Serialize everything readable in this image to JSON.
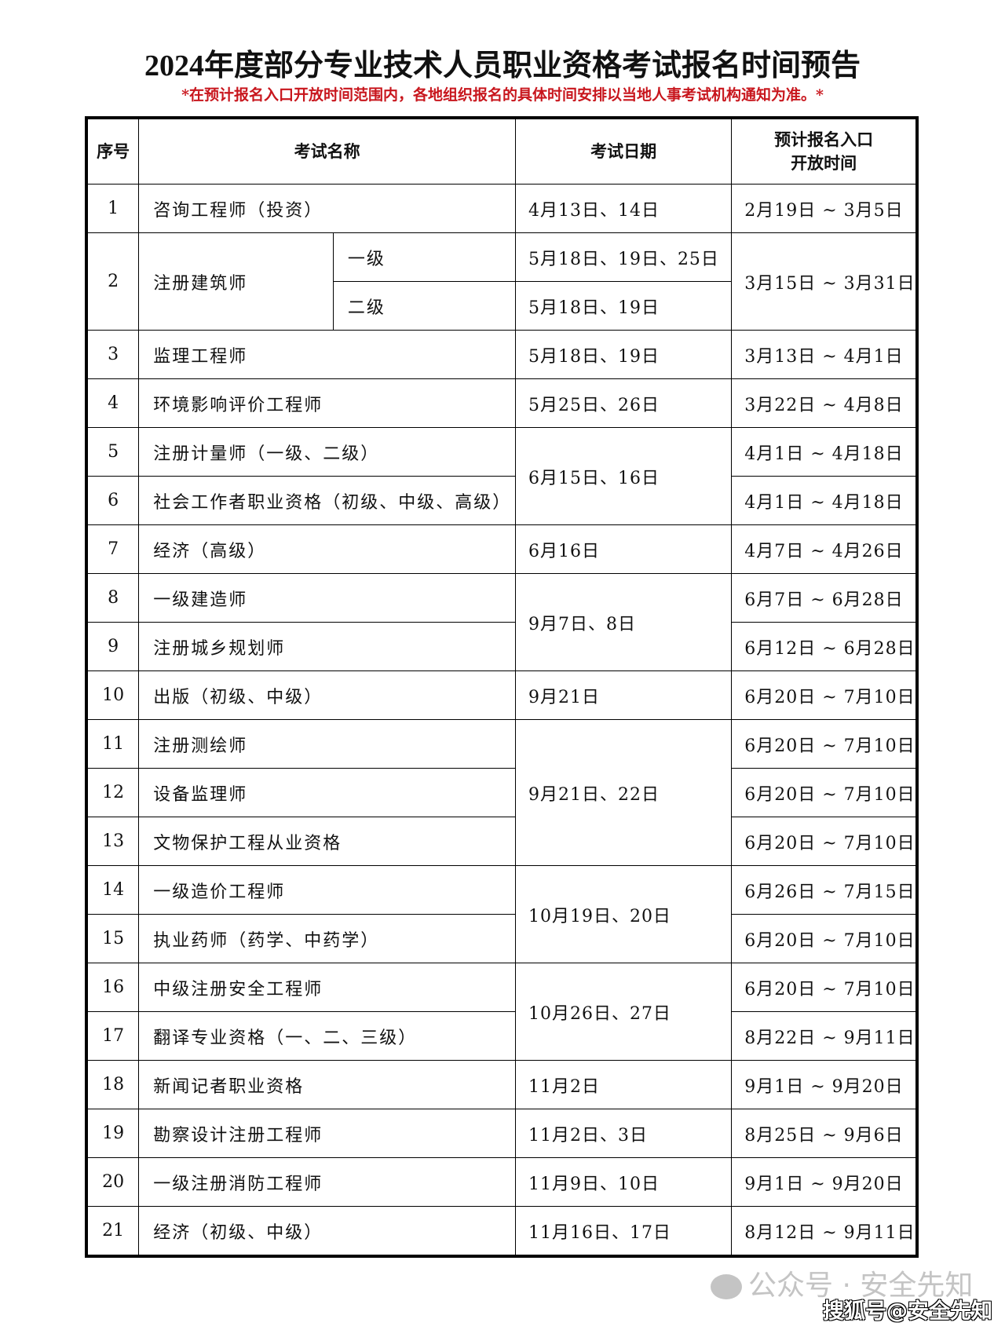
{
  "title": "2024年度部分专业技术人员职业资格考试报名时间预告",
  "note": "*在预计报名入口开放时间范围内，各地组织报名的具体时间安排以当地人事考试机构通知为准。*",
  "headers": {
    "no": "序号",
    "name": "考试名称",
    "date": "考试日期",
    "reg_line1": "预计报名入口",
    "reg_line2": "开放时间"
  },
  "rows": [
    {
      "no": "1",
      "name": "咨询工程师（投资）",
      "date": "4月13日、14日",
      "reg": "2月19日 ~ 3月5日"
    },
    {
      "no": "2",
      "name": "注册建筑师",
      "levels": [
        {
          "level": "一级",
          "date": "5月18日、19日、25日"
        },
        {
          "level": "二级",
          "date": "5月18日、19日"
        }
      ],
      "reg": "3月15日 ~ 3月31日"
    },
    {
      "no": "3",
      "name": "监理工程师",
      "date": "5月18日、19日",
      "reg": "3月13日 ~ 4月1日"
    },
    {
      "no": "4",
      "name": "环境影响评价工程师",
      "date": "5月25日、26日",
      "reg": "3月22日 ~ 4月8日"
    },
    {
      "no": "5",
      "name": "注册计量师（一级、二级）",
      "date": "6月15日、16日",
      "reg": "4月1日 ~ 4月18日"
    },
    {
      "no": "6",
      "name": "社会工作者职业资格（初级、中级、高级）",
      "date": null,
      "reg": "4月1日 ~ 4月18日"
    },
    {
      "no": "7",
      "name": "经济（高级）",
      "date": "6月16日",
      "reg": "4月7日 ~ 4月26日"
    },
    {
      "no": "8",
      "name": "一级建造师",
      "date": "9月7日、8日",
      "reg": "6月7日 ~ 6月28日"
    },
    {
      "no": "9",
      "name": "注册城乡规划师",
      "date": null,
      "reg": "6月12日 ~ 6月28日"
    },
    {
      "no": "10",
      "name": "出版（初级、中级）",
      "date": "9月21日",
      "reg": "6月20日 ~ 7月10日"
    },
    {
      "no": "11",
      "name": "注册测绘师",
      "date": "9月21日、22日",
      "reg": "6月20日 ~ 7月10日"
    },
    {
      "no": "12",
      "name": "设备监理师",
      "date": null,
      "reg": "6月20日 ~ 7月10日"
    },
    {
      "no": "13",
      "name": "文物保护工程从业资格",
      "date": null,
      "reg": "6月20日 ~ 7月10日"
    },
    {
      "no": "14",
      "name": "一级造价工程师",
      "date": "10月19日、20日",
      "reg": "6月26日 ~ 7月15日"
    },
    {
      "no": "15",
      "name": "执业药师（药学、中药学）",
      "date": null,
      "reg": "6月20日 ~ 7月10日"
    },
    {
      "no": "16",
      "name": "中级注册安全工程师",
      "date": "10月26日、27日",
      "reg": "6月20日 ~ 7月10日"
    },
    {
      "no": "17",
      "name": "翻译专业资格（一、二、三级）",
      "date": null,
      "reg": "8月22日 ~ 9月11日"
    },
    {
      "no": "18",
      "name": "新闻记者职业资格",
      "date": "11月2日",
      "reg": "9月1日 ~ 9月20日"
    },
    {
      "no": "19",
      "name": "勘察设计注册工程师",
      "date": "11月2日、3日",
      "reg": "8月25日 ~ 9月6日"
    },
    {
      "no": "20",
      "name": "一级注册消防工程师",
      "date": "11月9日、10日",
      "reg": "9月1日 ~ 9月20日"
    },
    {
      "no": "21",
      "name": "经济（初级、中级）",
      "date": "11月16日、17日",
      "reg": "8月12日 ~ 9月11日"
    }
  ],
  "watermark": {
    "wechat": "公众号 · 安全先知",
    "sohu": "搜狐号@安全先知"
  },
  "colors": {
    "note": "#c8161d",
    "border": "#000000"
  }
}
